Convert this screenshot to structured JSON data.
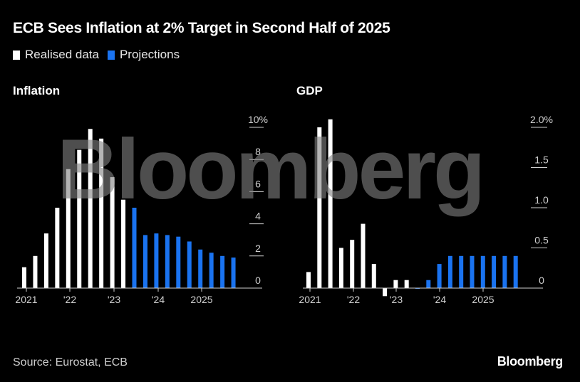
{
  "title": "ECB Sees Inflation at 2% Target in Second Half of 2025",
  "legend": [
    {
      "label": "Realised data",
      "color": "#ffffff"
    },
    {
      "label": "Projections",
      "color": "#1a73f0"
    }
  ],
  "watermark": "Bloomberg",
  "source": "Source: Eurostat, ECB",
  "brand": "Bloomberg",
  "chart_data": [
    {
      "type": "bar",
      "title": "Inflation",
      "ylabel": "%",
      "ylim": [
        0,
        10
      ],
      "yticks": [
        0,
        2,
        4,
        6,
        8,
        10
      ],
      "ytick_labels": [
        "0",
        "2",
        "4",
        "6",
        "8",
        "10%"
      ],
      "xtick_labels": [
        "2021",
        "'22",
        "'23",
        "'24",
        "2025"
      ],
      "categories": [
        "Q1 2021",
        "Q2 2021",
        "Q3 2021",
        "Q4 2021",
        "Q1 2022",
        "Q2 2022",
        "Q3 2022",
        "Q4 2022",
        "Q1 2023",
        "Q2 2023",
        "Q3 2023",
        "Q4 2023",
        "Q1 2024",
        "Q2 2024",
        "Q3 2024",
        "Q4 2024",
        "Q1 2025",
        "Q2 2025",
        "Q3 2025",
        "Q4 2025"
      ],
      "series": [
        {
          "name": "Realised data",
          "values": [
            1.3,
            2.0,
            3.4,
            5.0,
            7.4,
            8.6,
            9.9,
            9.3,
            6.9,
            5.5,
            null,
            null,
            null,
            null,
            null,
            null,
            null,
            null,
            null,
            null
          ]
        },
        {
          "name": "Projections",
          "values": [
            null,
            null,
            null,
            null,
            null,
            null,
            null,
            null,
            null,
            null,
            5.0,
            3.3,
            3.4,
            3.3,
            3.2,
            2.9,
            2.4,
            2.2,
            2.0,
            1.9
          ]
        }
      ],
      "grid": false
    },
    {
      "type": "bar",
      "title": "GDP",
      "ylabel": "%",
      "ylim": [
        0,
        2.0
      ],
      "yticks": [
        0,
        0.5,
        1.0,
        1.5,
        2.0
      ],
      "ytick_labels": [
        "0",
        "0.5",
        "1.0",
        "1.5",
        "2.0%"
      ],
      "xtick_labels": [
        "2021",
        "'22",
        "'23",
        "'24",
        "2025"
      ],
      "categories": [
        "Q1 2021",
        "Q2 2021",
        "Q3 2021",
        "Q4 2021",
        "Q1 2022",
        "Q2 2022",
        "Q3 2022",
        "Q4 2022",
        "Q1 2023",
        "Q2 2023",
        "Q3 2023",
        "Q4 2023",
        "Q1 2024",
        "Q2 2024",
        "Q3 2024",
        "Q4 2024",
        "Q1 2025",
        "Q2 2025",
        "Q3 2025",
        "Q4 2025"
      ],
      "series": [
        {
          "name": "Realised data",
          "values": [
            0.2,
            2.0,
            2.1,
            0.5,
            0.6,
            0.8,
            0.3,
            -0.1,
            0.1,
            0.1,
            null,
            null,
            null,
            null,
            null,
            null,
            null,
            null,
            null,
            null
          ]
        },
        {
          "name": "Projections",
          "values": [
            null,
            null,
            null,
            null,
            null,
            null,
            null,
            null,
            null,
            null,
            0.0,
            0.1,
            0.3,
            0.4,
            0.4,
            0.4,
            0.4,
            0.4,
            0.4,
            0.4
          ]
        }
      ],
      "grid": false
    }
  ]
}
